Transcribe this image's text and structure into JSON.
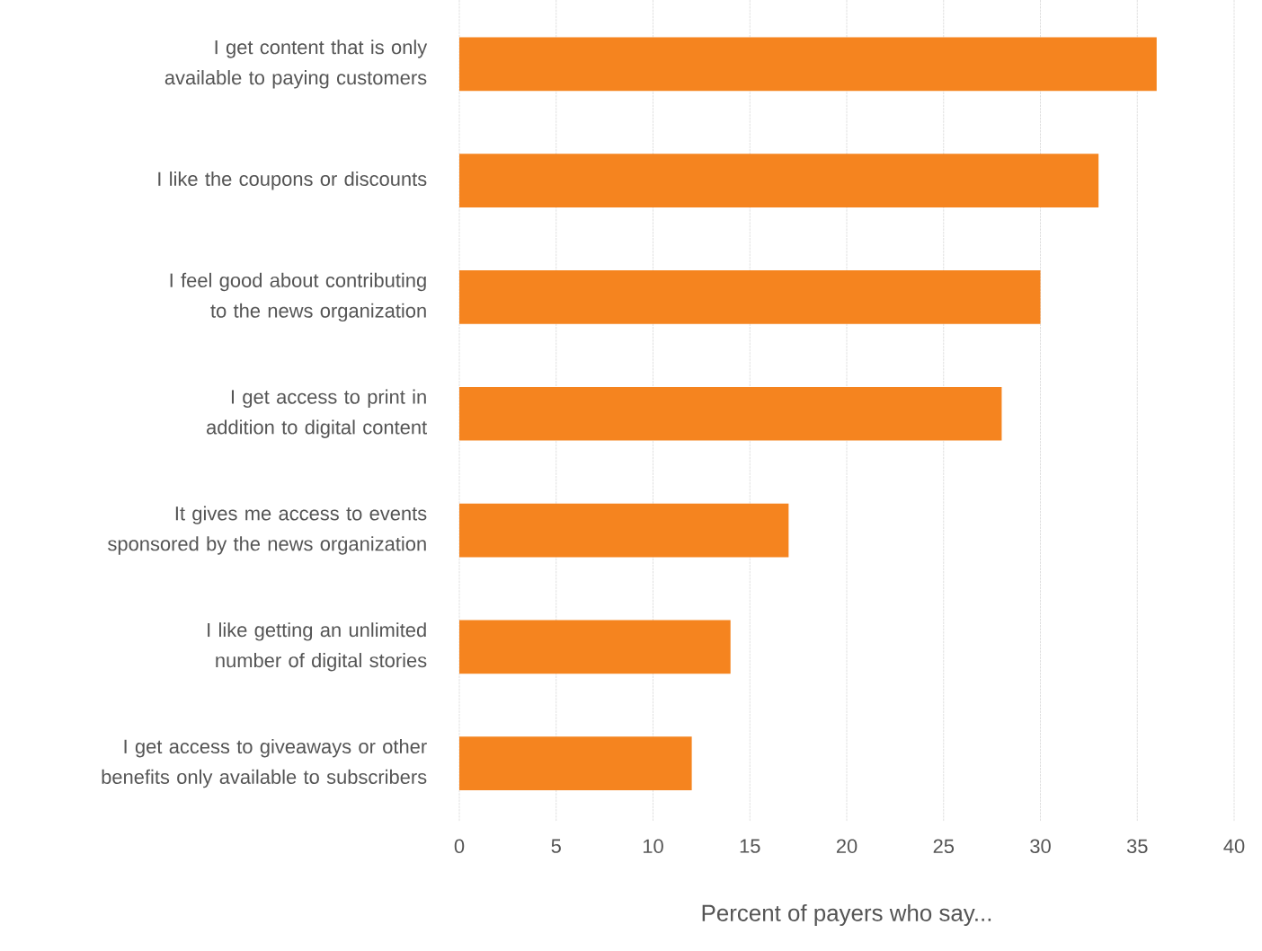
{
  "chart_data": {
    "type": "bar",
    "orientation": "horizontal",
    "xlabel": "Percent of payers who say...",
    "categories": [
      "I get content that is only available to paying customers",
      "I like the coupons or discounts",
      "I feel good about contributing to the news organization",
      "I get access to print in addition to digital content",
      "It gives me access to events sponsored by the news organization",
      "I like getting an unlimited number of digital stories",
      "I get access to giveaways or other benefits only available to subscribers"
    ],
    "values": [
      36,
      33,
      30,
      28,
      17,
      14,
      12
    ],
    "color": "#f5841f",
    "xlim": [
      0,
      40
    ],
    "xticks": [
      0,
      5,
      10,
      15,
      20,
      25,
      30,
      35,
      40
    ],
    "grid": "x"
  }
}
